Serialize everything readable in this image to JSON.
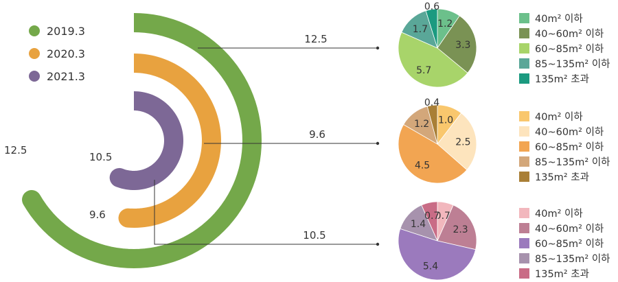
{
  "legend": {
    "items": [
      {
        "label": "2019.3",
        "color": "#74a84a"
      },
      {
        "label": "2020.3",
        "color": "#e8a23f"
      },
      {
        "label": "2021.3",
        "color": "#7d6896"
      }
    ]
  },
  "chart_data": [
    {
      "type": "radial-bar",
      "series": [
        {
          "name": "2019.3",
          "value": 12.5,
          "label": "12.5",
          "color": "#74a84a"
        },
        {
          "name": "2020.3",
          "value": 9.6,
          "label": "9.6",
          "color": "#e8a23f"
        },
        {
          "name": "2021.3",
          "value": 10.5,
          "label": "10.5",
          "color": "#7d6896"
        }
      ]
    },
    {
      "type": "pie",
      "connector_label": "12.5",
      "categories": [
        "40m² 이하",
        "40~60m² 이하",
        "60~85m² 이하",
        "85~135m² 이하",
        "135m² 초과"
      ],
      "values": [
        1.2,
        3.3,
        5.7,
        1.7,
        0.6
      ],
      "value_labels": [
        "1.2",
        "3.3",
        "5.7",
        "1.7",
        "0.6"
      ],
      "colors": [
        "#6cc08b",
        "#7a9254",
        "#a8d46a",
        "#5aa798",
        "#1b9a80"
      ]
    },
    {
      "type": "pie",
      "connector_label": "9.6",
      "categories": [
        "40m² 이하",
        "40~60m² 이하",
        "60~85m² 이하",
        "85~135m² 이하",
        "135m² 초과"
      ],
      "values": [
        1.0,
        2.5,
        4.5,
        1.2,
        0.4
      ],
      "value_labels": [
        "1.0",
        "2.5",
        "4.5",
        "1.2",
        "0.4"
      ],
      "colors": [
        "#f9c76d",
        "#fde4bd",
        "#f2a552",
        "#d3a77a",
        "#a97f36"
      ]
    },
    {
      "type": "pie",
      "connector_label": "10.5",
      "categories": [
        "40m² 이하",
        "40~60m² 이하",
        "60~85m² 이하",
        "85~135m² 이하",
        "135m² 초과"
      ],
      "values": [
        0.7,
        2.3,
        5.4,
        1.4,
        0.7
      ],
      "value_labels": [
        "0.7",
        "2.3",
        "5.4",
        "1.4",
        "0.7"
      ],
      "colors": [
        "#f2b7bd",
        "#bd7f94",
        "#9b7abd",
        "#a792ad",
        "#c96c86"
      ]
    }
  ]
}
